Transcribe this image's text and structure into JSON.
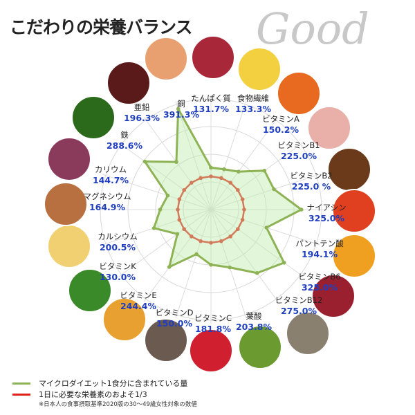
{
  "title": "こだわりの栄養バランス",
  "logo_text": "Good",
  "chart_data": {
    "type": "radar",
    "unit": "%",
    "categories": [
      "たんぱく質",
      "食物繊維",
      "ビタミンA",
      "ビタミンB1",
      "ビタミンB2",
      "ナイアシン",
      "パントテン酸",
      "ビタミンB6",
      "ビタミンB12",
      "葉酸",
      "ビタミンC",
      "ビタミンD",
      "ビタミンE",
      "ビタミンK",
      "カルシウム",
      "マグネシウム",
      "カリウム",
      "鉄",
      "亜鉛",
      "銅"
    ],
    "value_labels": [
      "131.7%",
      "133.3%",
      "150.2%",
      "225.0%",
      "225.0 %",
      "325.0%",
      "194.1%",
      "325.0%",
      "275.0%",
      "203.8%",
      "181.8%",
      "150.0%",
      "244.4%",
      "130.0%",
      "200.5%",
      "164.9%",
      "144.7%",
      "288.6%",
      "196.3%",
      "391.3%"
    ],
    "series": [
      {
        "name": "マイクロダイエット1食分に含まれている量",
        "color": "#8db354",
        "values": [
          131.7,
          133.3,
          150.2,
          225.0,
          225.0,
          325.0,
          194.1,
          325.0,
          275.0,
          203.8,
          181.8,
          150.0,
          244.4,
          130.0,
          200.5,
          164.9,
          144.7,
          288.6,
          196.3,
          391.3
        ]
      },
      {
        "name": "1日に必要な栄養素のおよそ1/3",
        "color": "#e0201b",
        "values": [
          100,
          100,
          100,
          100,
          100,
          100,
          100,
          100,
          100,
          100,
          100,
          100,
          100,
          100,
          100,
          100,
          100,
          100,
          100,
          100
        ]
      }
    ],
    "grid": true
  },
  "legend": {
    "note": "※日本人の食事摂取基準2020版の30〜49歳女性対象の数値"
  },
  "food_images": [
    "shrimp",
    "tuna",
    "banana",
    "carrot",
    "pork",
    "eel",
    "mentaiko",
    "egg",
    "bonito",
    "oyster",
    "edamame",
    "strawberry",
    "mushroom",
    "pumpkin",
    "spinach",
    "cheese",
    "almond",
    "sweet-potato",
    "kale",
    "liver"
  ],
  "food_colors": [
    "#e8a070",
    "#a8283a",
    "#f2d040",
    "#e86a20",
    "#e8b0a8",
    "#6a3a1a",
    "#e04020",
    "#f0a020",
    "#9a2030",
    "#8a8070",
    "#6a9a30",
    "#d02030",
    "#6a5a50",
    "#e8a030",
    "#3a8a2a",
    "#f0d070",
    "#b87040",
    "#8a3a5a",
    "#2a6a1a",
    "#5a1a1a"
  ]
}
